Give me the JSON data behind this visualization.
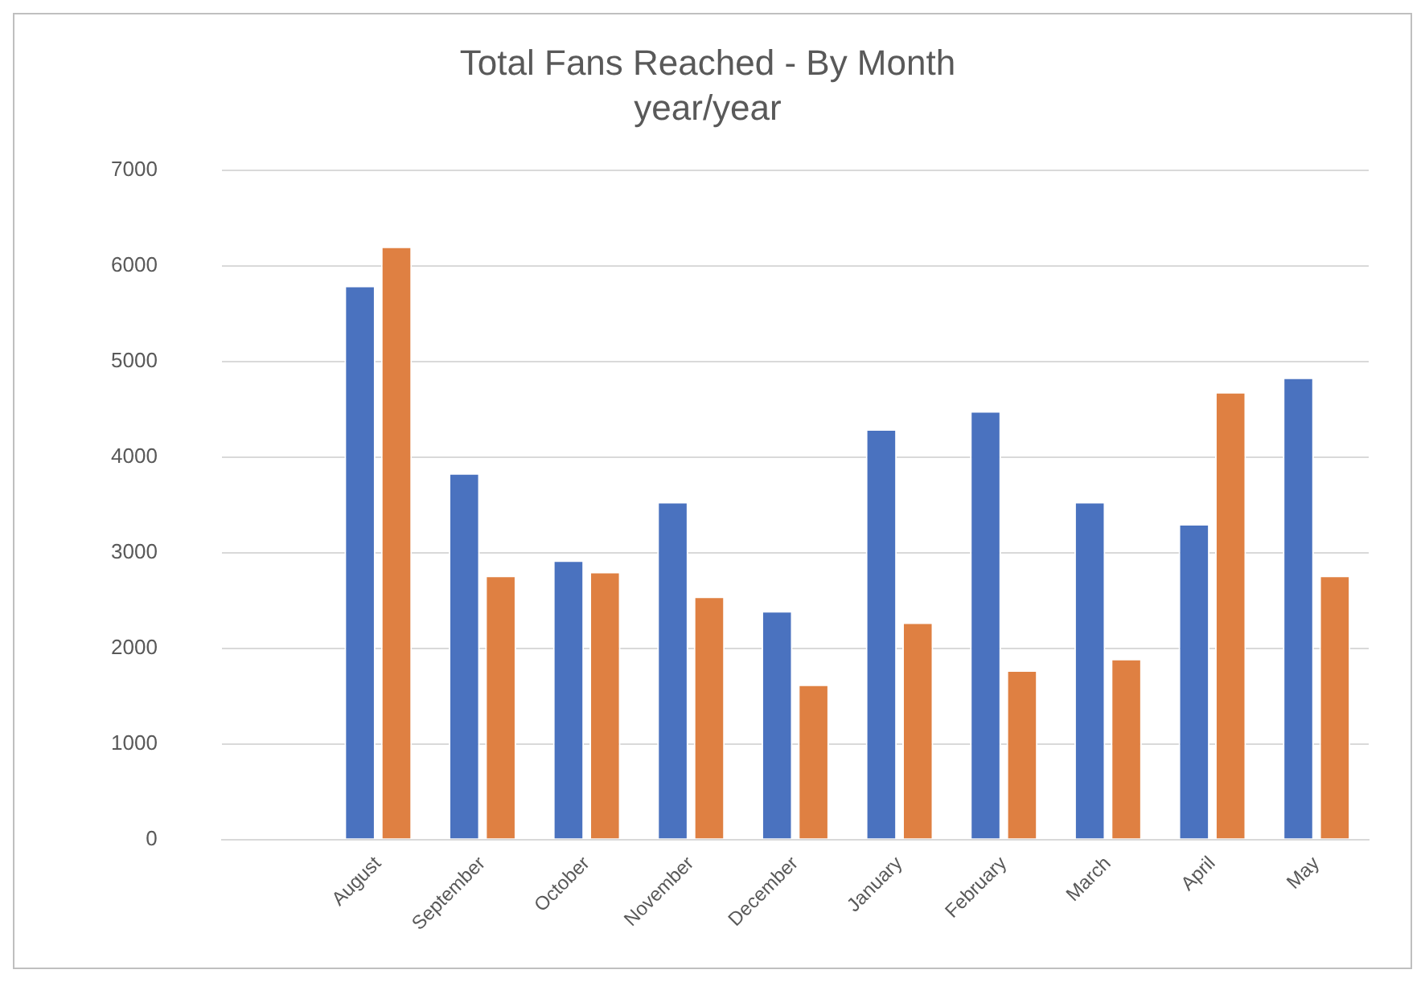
{
  "chart_data": {
    "type": "bar",
    "title": "Total Fans Reached - By Month",
    "subtitle": "year/year",
    "categories": [
      null,
      "August",
      "September",
      "October",
      "November",
      "December",
      "January",
      "February",
      "March",
      "April",
      "May"
    ],
    "series": [
      {
        "color": "#4a72bf",
        "values": [
          null,
          5790,
          3830,
          2920,
          3530,
          2390,
          4290,
          4480,
          3530,
          3300,
          4830
        ]
      },
      {
        "color": "#df8042",
        "values": [
          null,
          6200,
          2760,
          2800,
          2540,
          1620,
          2270,
          1770,
          1890,
          4680,
          2760
        ]
      }
    ],
    "ylim": [
      0,
      7000
    ],
    "yticks": [
      0,
      1000,
      2000,
      3000,
      4000,
      5000,
      6000,
      7000
    ],
    "grid": "y",
    "legend": false
  }
}
